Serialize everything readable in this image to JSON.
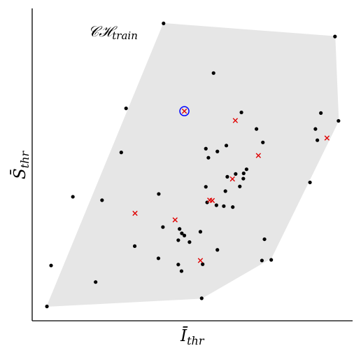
{
  "chart_data": {
    "type": "scatter",
    "title": "",
    "hull_label": {
      "main": "𝒞ℋ",
      "sub": "train"
    },
    "xlabel": {
      "main": "Ī",
      "sub": "thr"
    },
    "ylabel": {
      "main": "S̄",
      "sub": "thr"
    },
    "xlim": [
      0,
      100
    ],
    "ylim": [
      0,
      100
    ],
    "grid": false,
    "ticks": false,
    "colors": {
      "hull": "#e6e6e6",
      "train_point": "#000000",
      "test_point": "#e00000",
      "highlight": "#0000ff"
    },
    "hull": [
      [
        4.6,
        4.6
      ],
      [
        41.0,
        95.2
      ],
      [
        94.5,
        91.0
      ],
      [
        95.6,
        64.0
      ],
      [
        74.6,
        20.1
      ],
      [
        52.9,
        7.2
      ]
    ],
    "series": [
      {
        "marker": "dot",
        "points": [
          [
            41.0,
            95.2
          ],
          [
            94.5,
            91.0
          ],
          [
            56.6,
            79.3
          ],
          [
            29.3,
            68.0
          ],
          [
            65.3,
            66.7
          ],
          [
            90.1,
            66.5
          ],
          [
            95.6,
            64.0
          ],
          [
            70.0,
            61.4
          ],
          [
            88.4,
            61.4
          ],
          [
            89.0,
            57.8
          ],
          [
            72.0,
            57.1
          ],
          [
            60.6,
            56.1
          ],
          [
            54.2,
            55.1
          ],
          [
            57.8,
            54.2
          ],
          [
            27.8,
            53.9
          ],
          [
            55.0,
            52.2
          ],
          [
            66.9,
            48.5
          ],
          [
            63.5,
            47.0
          ],
          [
            66.0,
            47.2
          ],
          [
            60.9,
            46.1
          ],
          [
            65.9,
            45.5
          ],
          [
            86.7,
            44.3
          ],
          [
            64.8,
            43.0
          ],
          [
            54.2,
            42.9
          ],
          [
            60.3,
            41.5
          ],
          [
            12.7,
            39.7
          ],
          [
            39.5,
            40.6
          ],
          [
            21.8,
            38.6
          ],
          [
            54.6,
            37.9
          ],
          [
            57.5,
            37.0
          ],
          [
            59.8,
            36.7
          ],
          [
            62.6,
            36.4
          ],
          [
            40.8,
            30.0
          ],
          [
            46.0,
            29.4
          ],
          [
            52.5,
            28.5
          ],
          [
            46.7,
            28.0
          ],
          [
            47.5,
            27.3
          ],
          [
            72.5,
            26.1
          ],
          [
            45.6,
            25.8
          ],
          [
            49.1,
            25.2
          ],
          [
            32.0,
            23.9
          ],
          [
            57.8,
            22.7
          ],
          [
            39.4,
            20.0
          ],
          [
            71.7,
            19.3
          ],
          [
            74.6,
            19.5
          ],
          [
            53.2,
            18.1
          ],
          [
            45.6,
            18.0
          ],
          [
            5.9,
            17.7
          ],
          [
            46.6,
            15.9
          ],
          [
            19.8,
            12.4
          ],
          [
            52.9,
            7.2
          ],
          [
            4.6,
            4.6
          ]
        ]
      },
      {
        "marker": "x",
        "points": [
          [
            47.5,
            67.1
          ],
          [
            63.4,
            64.1
          ],
          [
            92.0,
            58.5
          ],
          [
            70.6,
            52.9
          ],
          [
            62.5,
            45.4
          ],
          [
            55.4,
            38.6
          ],
          [
            56.2,
            38.5
          ],
          [
            32.1,
            34.4
          ],
          [
            44.6,
            32.3
          ],
          [
            52.5,
            19.3
          ]
        ]
      }
    ],
    "highlight": [
      47.5,
      67.1
    ]
  }
}
